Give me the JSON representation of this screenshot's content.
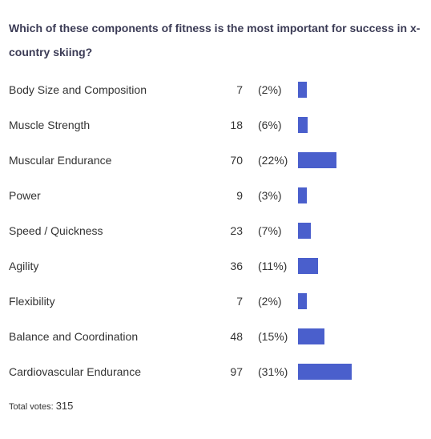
{
  "title": "Which of these components of fitness is the most important for success in x-country skiing?",
  "items": [
    {
      "label": "Body Size and Composition",
      "votes": 7,
      "percent": "(2%)"
    },
    {
      "label": "Muscle Strength",
      "votes": 18,
      "percent": "(6%)"
    },
    {
      "label": "Muscular Endurance",
      "votes": 70,
      "percent": "(22%)"
    },
    {
      "label": "Power",
      "votes": 9,
      "percent": "(3%)"
    },
    {
      "label": "Speed / Quickness",
      "votes": 23,
      "percent": "(7%)"
    },
    {
      "label": "Agility",
      "votes": 36,
      "percent": "(11%)"
    },
    {
      "label": "Flexibility",
      "votes": 7,
      "percent": "(2%)"
    },
    {
      "label": "Balance and Coordination",
      "votes": 48,
      "percent": "(15%)"
    },
    {
      "label": "Cardiovascular Endurance",
      "votes": 97,
      "percent": "(31%)"
    }
  ],
  "total_label": "Total votes:",
  "total": 315
}
